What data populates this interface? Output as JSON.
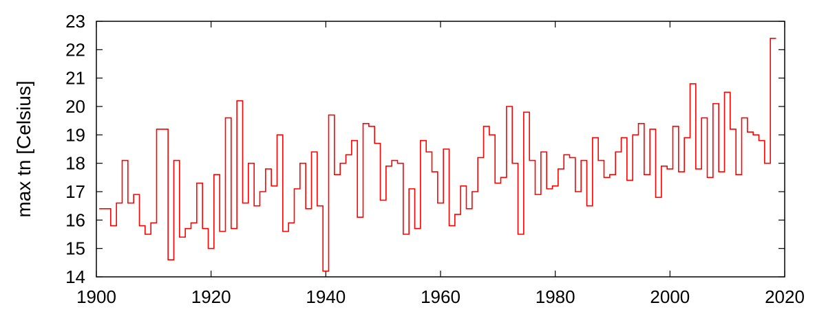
{
  "chart_data": {
    "type": "line",
    "step": true,
    "xlabel": "",
    "ylabel": "max tn [Celsius]",
    "xlim": [
      1900,
      2020
    ],
    "ylim": [
      14,
      23
    ],
    "xticks": [
      "1900",
      "1920",
      "1940",
      "1960",
      "1980",
      "2000",
      "2020"
    ],
    "yticks": [
      "14",
      "15",
      "16",
      "17",
      "18",
      "19",
      "20",
      "21",
      "22",
      "23"
    ],
    "grid": false,
    "line_color": "#ff0000",
    "series": [
      {
        "x": [
          1901,
          1902,
          1903,
          1904,
          1905,
          1906,
          1907,
          1908,
          1909,
          1910,
          1911,
          1912,
          1913,
          1914,
          1915,
          1916,
          1917,
          1918,
          1919,
          1920,
          1921,
          1922,
          1923,
          1924,
          1925,
          1926,
          1927,
          1928,
          1929,
          1930,
          1931,
          1932,
          1933,
          1934,
          1935,
          1936,
          1937,
          1938,
          1939,
          1940,
          1941,
          1942,
          1943,
          1944,
          1945,
          1946,
          1947,
          1948,
          1949,
          1950,
          1951,
          1952,
          1953,
          1954,
          1955,
          1956,
          1957,
          1958,
          1959,
          1960,
          1961,
          1962,
          1963,
          1964,
          1965,
          1966,
          1967,
          1968,
          1969,
          1970,
          1971,
          1972,
          1973,
          1974,
          1975,
          1976,
          1977,
          1978,
          1979,
          1980,
          1981,
          1982,
          1983,
          1984,
          1985,
          1986,
          1987,
          1988,
          1989,
          1990,
          1991,
          1992,
          1993,
          1994,
          1995,
          1996,
          1997,
          1998,
          1999,
          2000,
          2001,
          2002,
          2003,
          2004,
          2005,
          2006,
          2007,
          2008,
          2009,
          2010,
          2011,
          2012,
          2013,
          2014,
          2015,
          2016,
          2017,
          2018
        ],
        "values": [
          16.4,
          16.4,
          15.8,
          16.6,
          18.1,
          16.6,
          16.9,
          15.8,
          15.5,
          15.9,
          19.2,
          19.2,
          14.6,
          18.1,
          15.4,
          15.7,
          15.9,
          17.3,
          15.7,
          15.0,
          17.6,
          15.6,
          19.6,
          15.7,
          20.2,
          16.6,
          18.0,
          16.5,
          17.0,
          17.8,
          17.2,
          19.0,
          15.6,
          15.9,
          17.1,
          18.0,
          16.4,
          18.4,
          16.5,
          14.2,
          19.7,
          17.6,
          18.0,
          18.3,
          18.8,
          16.1,
          19.4,
          19.3,
          18.7,
          16.7,
          17.9,
          18.1,
          18.0,
          15.5,
          17.1,
          15.7,
          18.8,
          18.4,
          17.7,
          16.6,
          18.5,
          15.8,
          16.2,
          17.2,
          16.4,
          17.0,
          18.2,
          19.3,
          19.0,
          17.3,
          17.5,
          20.0,
          18.0,
          15.5,
          19.8,
          18.1,
          16.9,
          18.4,
          17.1,
          17.2,
          17.8,
          18.3,
          18.2,
          17.0,
          18.1,
          16.5,
          18.9,
          18.1,
          17.5,
          17.6,
          18.4,
          18.9,
          17.4,
          19.0,
          19.4,
          17.6,
          19.2,
          16.8,
          17.9,
          17.8,
          19.3,
          17.7,
          18.9,
          20.8,
          17.8,
          19.6,
          17.5,
          20.1,
          17.7,
          20.5,
          19.2,
          17.6,
          19.6,
          19.1,
          19.0,
          18.8,
          18.0,
          22.4
        ]
      }
    ]
  }
}
